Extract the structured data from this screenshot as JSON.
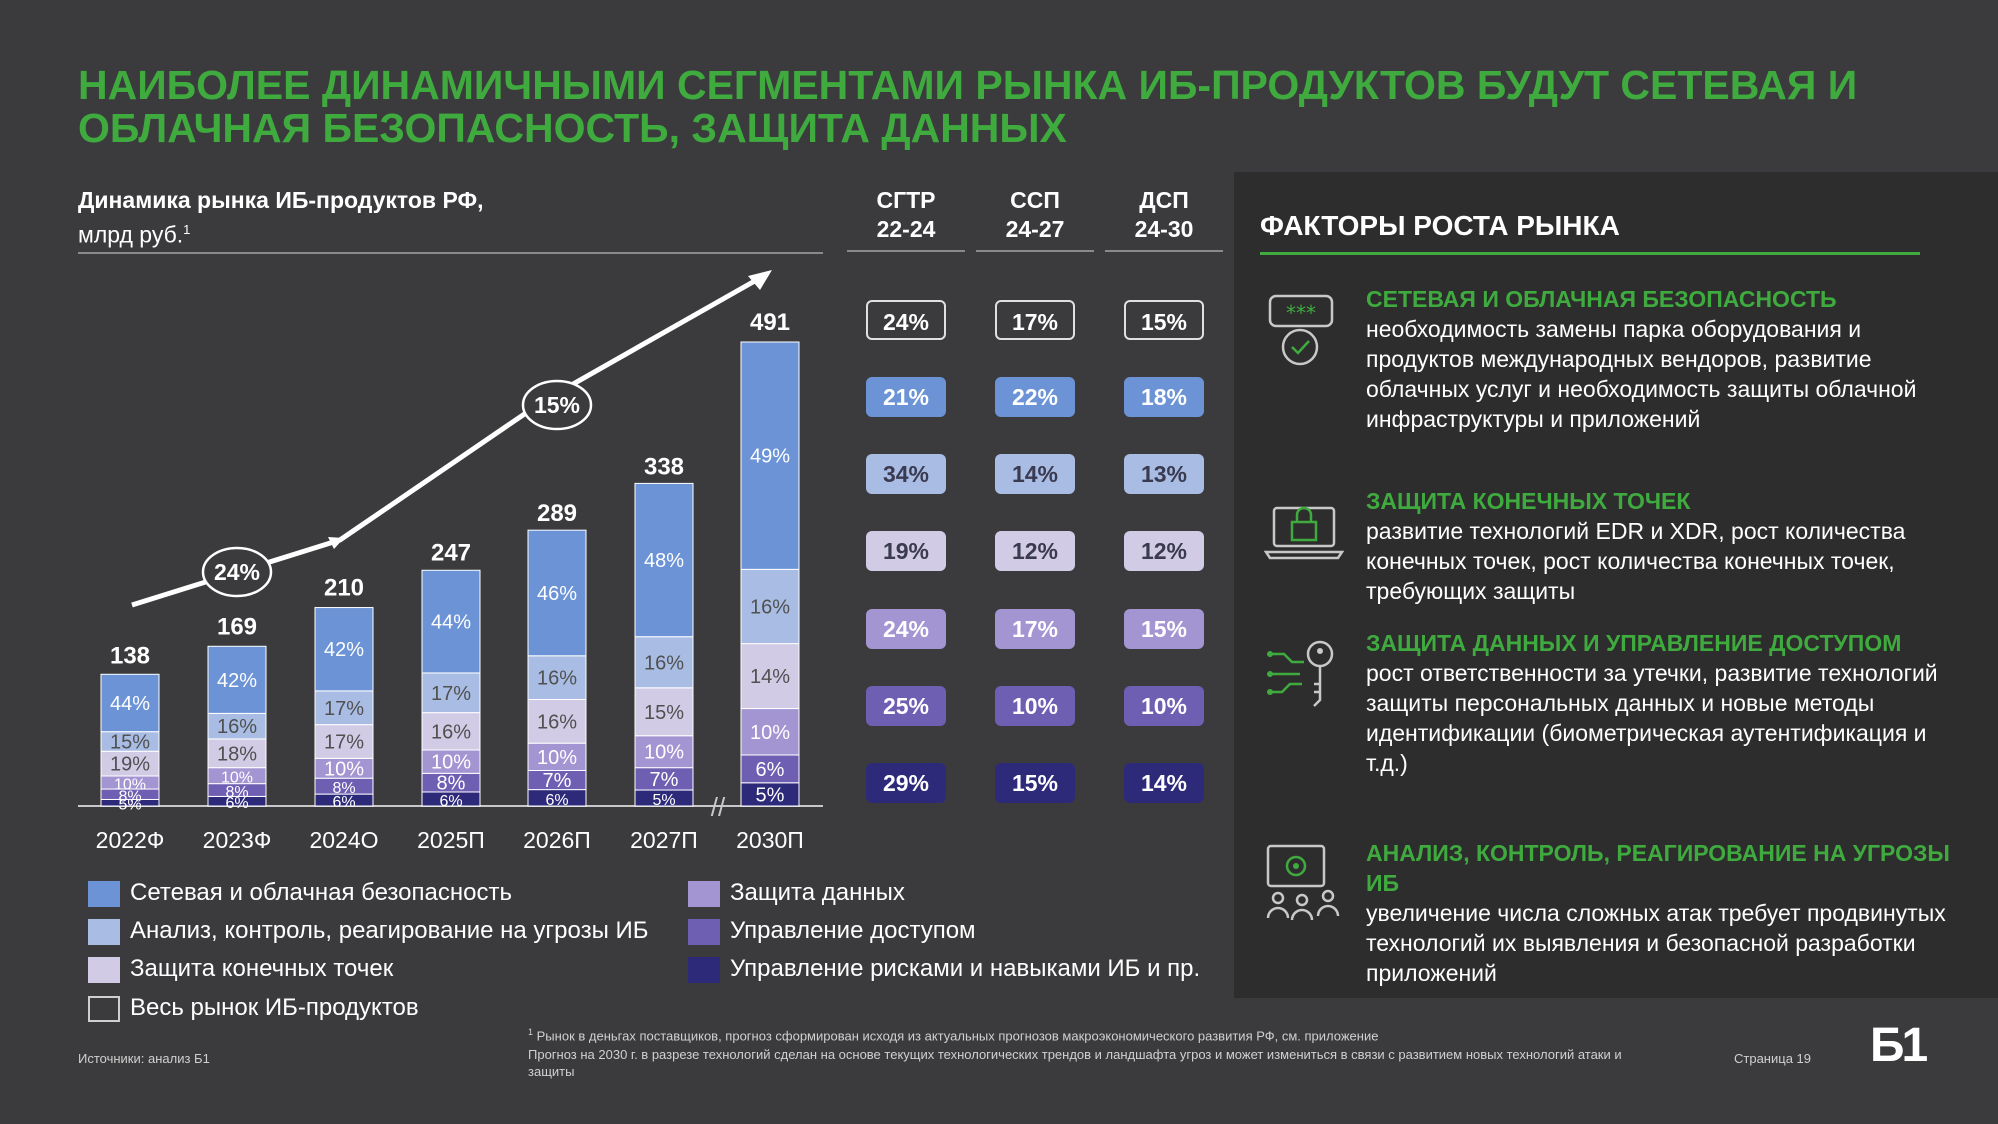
{
  "title": "НАИБОЛЕЕ ДИНАМИЧНЫМИ СЕГМЕНТАМИ РЫНКА ИБ-ПРОДУКТОВ БУДУТ СЕТЕВАЯ И ОБЛАЧНАЯ БЕЗОПАСНОСТЬ, ЗАЩИТА ДАННЫХ",
  "chart_head": {
    "line1": "Динамика рынка ИБ-продуктов РФ,",
    "line2": "млрд руб.",
    "sup": "1"
  },
  "colors": {
    "network_cloud": "#6b93d6",
    "threat_analysis": "#a9bde4",
    "endpoint": "#d2cbe6",
    "data_protection": "#a394d2",
    "access_mgmt": "#6f5fb3",
    "risk_mgmt": "#2e2a7a",
    "accent_green": "#3fab3f",
    "background": "#3b3b3d",
    "panel": "#2d2d2d"
  },
  "chart_data": {
    "type": "bar",
    "stacked": true,
    "unit": "млрд руб.",
    "categories": [
      "2022Ф",
      "2023Ф",
      "2024О",
      "2025П",
      "2026П",
      "2027П",
      "2030П"
    ],
    "totals": [
      138,
      169,
      210,
      247,
      289,
      338,
      491
    ],
    "series": [
      {
        "name": "Управление рисками и навыками ИБ и пр.",
        "key": "risk_mgmt",
        "shares": [
          5,
          6,
          6,
          6,
          6,
          5,
          5
        ],
        "labels": [
          "5%",
          "6%",
          "6%",
          "6%",
          "6%",
          "5%",
          "5%"
        ]
      },
      {
        "name": "Управление доступом",
        "key": "access_mgmt",
        "shares": [
          8,
          8,
          8,
          8,
          7,
          7,
          6
        ],
        "labels": [
          "8%",
          "8%",
          "8%",
          "8%",
          "7%",
          "7%",
          "6%"
        ]
      },
      {
        "name": "Защита данных",
        "key": "data_protection",
        "shares": [
          10,
          10,
          10,
          10,
          10,
          10,
          10
        ],
        "labels": [
          "10%",
          "10%",
          "10%",
          "10%",
          "10%",
          "10%",
          "10%"
        ]
      },
      {
        "name": "Защита конечных точек",
        "key": "endpoint",
        "shares": [
          19,
          18,
          17,
          16,
          16,
          15,
          14
        ],
        "labels": [
          "19%",
          "18%",
          "17%",
          "16%",
          "16%",
          "15%",
          "14%"
        ]
      },
      {
        "name": "Анализ, контроль, реагирование на угрозы ИБ",
        "key": "threat_analysis",
        "shares": [
          15,
          16,
          17,
          17,
          16,
          16,
          16
        ],
        "labels": [
          "15%",
          "16%",
          "17%",
          "17%",
          "16%",
          "16%",
          "16%"
        ]
      },
      {
        "name": "Сетевая и облачная безопасность",
        "key": "network_cloud",
        "shares": [
          44,
          42,
          42,
          44,
          46,
          48,
          49
        ],
        "labels": [
          "44%",
          "42%",
          "42%",
          "44%",
          "46%",
          "48%",
          "49%"
        ]
      }
    ],
    "growth_bubbles": [
      "24%",
      "15%"
    ],
    "axis_break": "//"
  },
  "cagr_table": {
    "headers": [
      {
        "l1": "СГТР",
        "l2": "22-24"
      },
      {
        "l1": "ССП",
        "l2": "24-27"
      },
      {
        "l1": "ДСП",
        "l2": "24-30"
      }
    ],
    "rows": [
      {
        "key": "total",
        "values": [
          "24%",
          "17%",
          "15%"
        ]
      },
      {
        "key": "network_cloud",
        "values": [
          "21%",
          "22%",
          "18%"
        ]
      },
      {
        "key": "threat_analysis",
        "values": [
          "34%",
          "14%",
          "13%"
        ]
      },
      {
        "key": "endpoint",
        "values": [
          "19%",
          "12%",
          "12%"
        ]
      },
      {
        "key": "data_protection",
        "values": [
          "24%",
          "17%",
          "15%"
        ]
      },
      {
        "key": "access_mgmt",
        "values": [
          "25%",
          "10%",
          "10%"
        ]
      },
      {
        "key": "risk_mgmt",
        "values": [
          "29%",
          "15%",
          "14%"
        ]
      }
    ]
  },
  "legend": {
    "network_cloud": "Сетевая и облачная безопасность",
    "threat_analysis": "Анализ, контроль, реагирование на угрозы ИБ",
    "endpoint": "Защита конечных точек",
    "total": "Весь рынок ИБ-продуктов",
    "data_protection": "Защита данных",
    "access_mgmt": "Управление доступом",
    "risk_mgmt": "Управление рисками и навыками ИБ и пр."
  },
  "factors": {
    "title": "ФАКТОРЫ РОСТА РЫНКА",
    "items": [
      {
        "icon": "chat-password-check-icon",
        "title": "СЕТЕВАЯ И ОБЛАЧНАЯ БЕЗОПАСНОСТЬ",
        "text": "необходимость замены парка оборудования и продуктов международных вендоров, развитие облачных услуг и необходимость защиты облачной инфраструктуры и приложений"
      },
      {
        "icon": "laptop-lock-icon",
        "title": "ЗАЩИТА КОНЕЧНЫХ ТОЧЕК",
        "text": "развитие технологий EDR и XDR, рост количества конечных точек, рост количества конечных точек, требующих защиты"
      },
      {
        "icon": "circuit-key-icon",
        "title": "ЗАЩИТА ДАННЫХ И УПРАВЛЕНИЕ ДОСТУПОМ",
        "text": "рост ответственности за утечки, развитие технологий защиты персональных данных и новые методы идентификации (биометрическая аутентификация и т.д.)"
      },
      {
        "icon": "monitor-users-gear-icon",
        "title": "АНАЛИЗ, КОНТРОЛЬ, РЕАГИРОВАНИЕ НА УГРОЗЫ ИБ",
        "text": "увеличение числа сложных атак требует продвинутых технологий их выявления и безопасной разработки приложений"
      }
    ]
  },
  "footer": {
    "sources": "Источники: анализ Б1",
    "note_sup": "1",
    "note1": "Рынок в деньгах поставщиков, прогноз сформирован исходя из актуальных прогнозов макроэкономического развития РФ, см. приложение",
    "note2": "Прогноз на 2030 г. в разрезе технологий сделан на основе текущих технологических трендов и ландшафта угроз и может измениться в связи с развитием новых технологий атаки и защиты",
    "page": "Страница 19",
    "logo": "Б1"
  }
}
